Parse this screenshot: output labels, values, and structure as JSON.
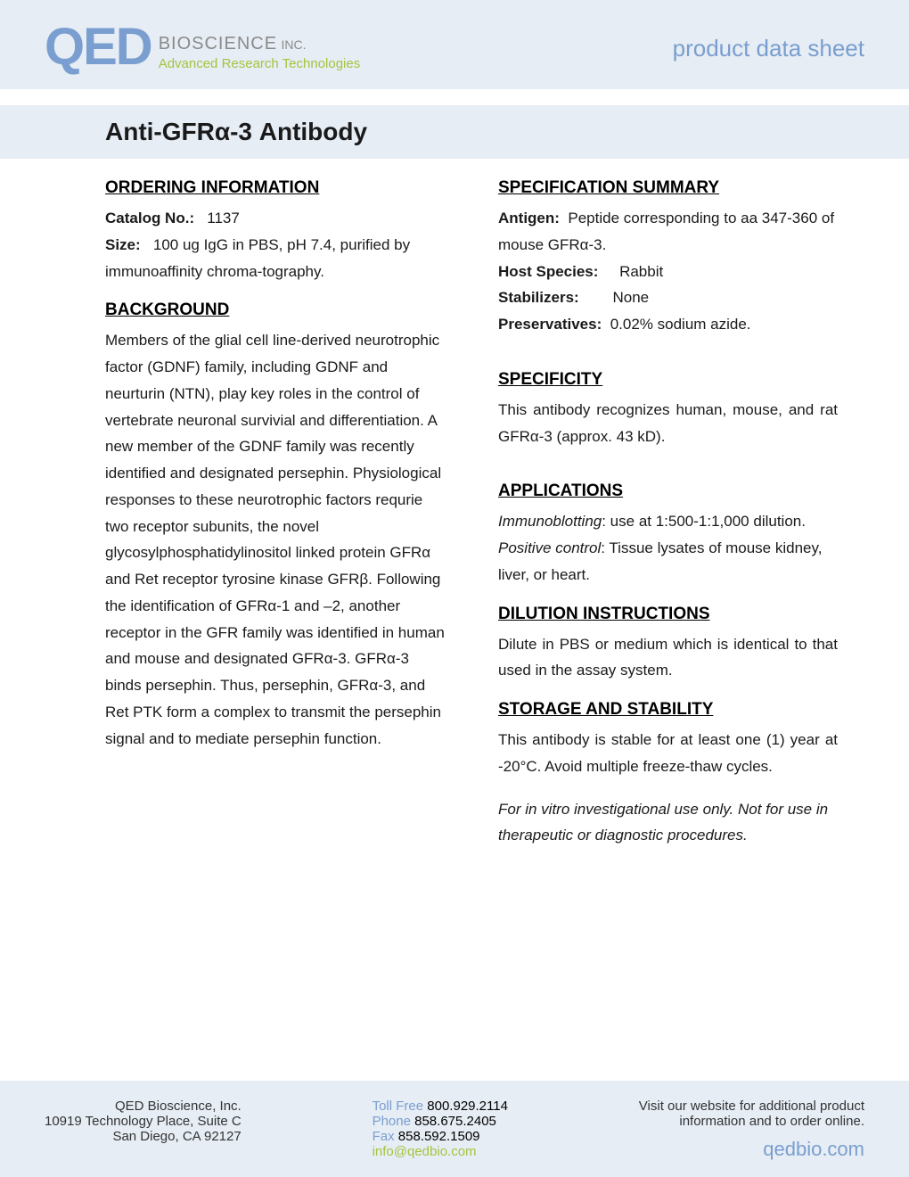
{
  "header": {
    "logo_main": "QED",
    "logo_bio": "BIOSCIENCE",
    "logo_inc": "INC.",
    "logo_tagline": "Advanced Research Technologies",
    "pds": "product data sheet"
  },
  "title": "Anti-GFRα-3 Antibody",
  "left": {
    "ordering_head": "ORDERING INFORMATION",
    "catalog_label": "Catalog No.:",
    "catalog_value": "1137",
    "size_label": "Size:",
    "size_value": "100 ug IgG in PBS, pH 7.4, purified by immunoaffinity chroma-tography.",
    "background_head": "BACKGROUND",
    "background_text": "Members of the glial cell line-derived neurotrophic factor (GDNF) family, including GDNF and neurturin (NTN), play key roles in the control of vertebrate neuronal survivial and differentiation.  A new member of the GDNF family was recently identified and designated persephin.  Physiological responses to these neurotrophic factors requrie two receptor subunits, the novel glycosylphosphatidylinositol linked protein GFRα and Ret receptor tyrosine kinase GFRβ.  Following the identification of GFRα-1 and –2, another receptor in the GFR family was identified in human and mouse and designated GFRα-3.  GFRα-3 binds persephin.  Thus, persephin, GFRα-3, and Ret PTK form a complex to transmit the persephin signal and to mediate persephin function."
  },
  "right": {
    "spec_head": "SPECIFICATION SUMMARY",
    "antigen_label": "Antigen:",
    "antigen_value": "Peptide corresponding to aa 347-360 of mouse GFRα-3.",
    "host_label": "Host Species:",
    "host_value": "Rabbit",
    "stab_label": "Stabilizers:",
    "stab_value": "None",
    "pres_label": "Preservatives:",
    "pres_value": "0.02% sodium azide.",
    "specificity_head": "SPECIFICITY",
    "specificity_text": "This antibody recognizes human, mouse, and rat GFRα-3 (approx. 43 kD).",
    "applications_head": "APPLICATIONS",
    "app_immuno_label": "Immunoblotting",
    "app_immuno_text": ": use at 1:500-1:1,000 dilution.",
    "app_pos_label": "Positive control",
    "app_pos_text": ": Tissue lysates of mouse kidney, liver, or heart.",
    "dilution_head": "DILUTION INSTRUCTIONS",
    "dilution_text": "Dilute in PBS or medium which is identical to that used in the assay system.",
    "storage_head": "STORAGE AND STABILITY",
    "storage_text": "This antibody is stable for at least one (1) year at -20°C. Avoid multiple freeze-thaw cycles.",
    "disclaimer": "For in vitro investigational use only.  Not for use in therapeutic or diagnostic procedures."
  },
  "footer": {
    "company": "QED Bioscience, Inc.",
    "address1": "10919 Technology Place, Suite C",
    "address2": "San Diego, CA 92127",
    "tollfree_label": "Toll Free",
    "tollfree": "800.929.2114",
    "phone_label": "Phone",
    "phone": "858.675.2405",
    "fax_label": "Fax",
    "fax": "858.592.1509",
    "email": "info@qedbio.com",
    "visit1": "Visit our website for additional product",
    "visit2": "information and to order online.",
    "site": "qedbio.com"
  }
}
